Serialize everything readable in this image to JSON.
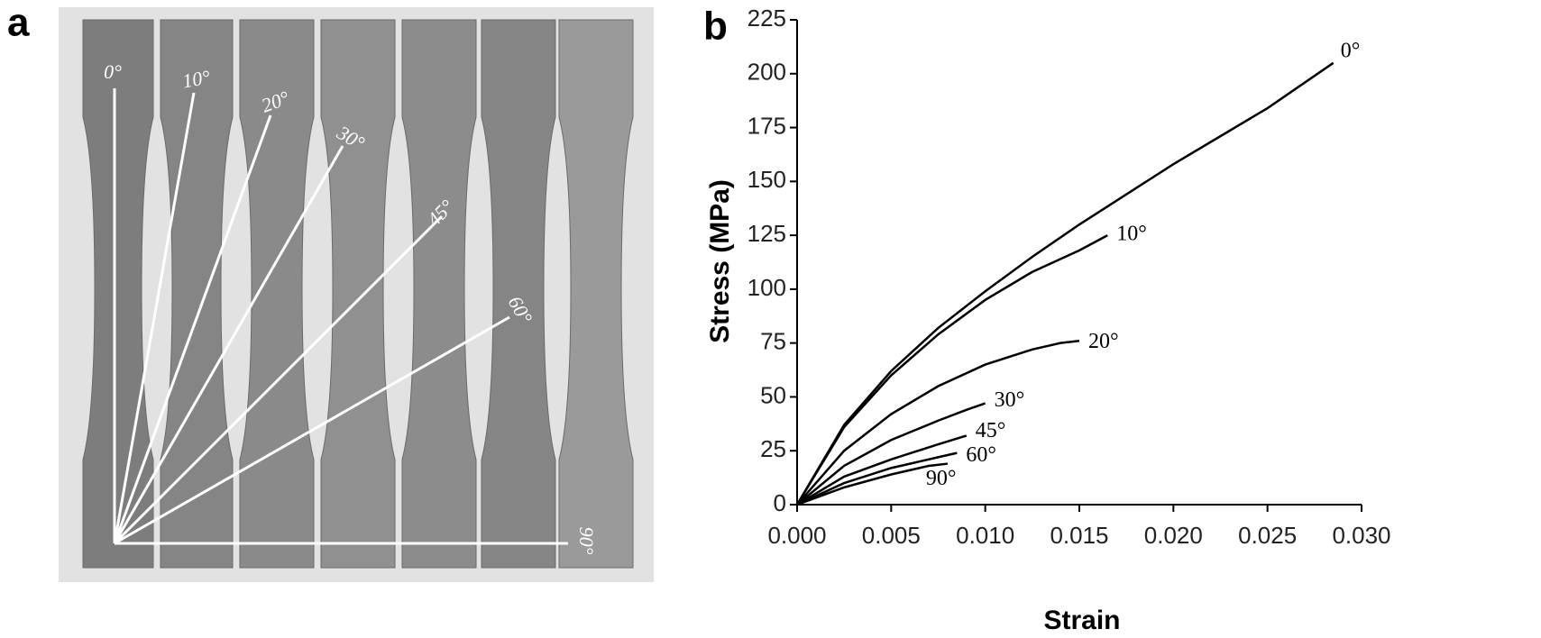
{
  "panel_labels": [
    "a",
    "b"
  ],
  "photo": {
    "angle_labels": [
      "0°",
      "10°",
      "20°",
      "30°",
      "45°",
      "60°",
      "90°"
    ]
  },
  "chart_data": {
    "type": "line",
    "xlabel": "Strain",
    "ylabel": "Stress (MPa)",
    "xlim": [
      0,
      0.03
    ],
    "ylim": [
      0,
      225
    ],
    "xticks": [
      {
        "value": 0,
        "label": "0.000"
      },
      {
        "value": 0.005,
        "label": "0.005"
      },
      {
        "value": 0.01,
        "label": "0.010"
      },
      {
        "value": 0.015,
        "label": "0.015"
      },
      {
        "value": 0.02,
        "label": "0.020"
      },
      {
        "value": 0.025,
        "label": "0.025"
      },
      {
        "value": 0.03,
        "label": "0.030"
      }
    ],
    "yticks": [
      0,
      25,
      50,
      75,
      100,
      125,
      150,
      175,
      200,
      225
    ],
    "series": [
      {
        "name": "0°",
        "color": "#000000",
        "x": [
          0,
          0.0025,
          0.005,
          0.0075,
          0.01,
          0.0125,
          0.015,
          0.0175,
          0.02,
          0.0225,
          0.025,
          0.0285
        ],
        "values": [
          0,
          37,
          62,
          82,
          99,
          115,
          130,
          144,
          158,
          171,
          184,
          205
        ]
      },
      {
        "name": "10°",
        "color": "#000000",
        "x": [
          0,
          0.0025,
          0.005,
          0.0075,
          0.01,
          0.0125,
          0.015,
          0.0165
        ],
        "values": [
          0,
          36,
          60,
          79,
          95,
          108,
          118,
          125
        ]
      },
      {
        "name": "20°",
        "color": "#000000",
        "x": [
          0,
          0.0025,
          0.005,
          0.0075,
          0.01,
          0.0125,
          0.014,
          0.015
        ],
        "values": [
          0,
          25,
          42,
          55,
          65,
          72,
          75,
          76
        ]
      },
      {
        "name": "30°",
        "color": "#000000",
        "x": [
          0,
          0.0025,
          0.005,
          0.0075,
          0.009,
          0.01
        ],
        "values": [
          0,
          18,
          30,
          39,
          44,
          47
        ]
      },
      {
        "name": "45°",
        "color": "#000000",
        "x": [
          0,
          0.0025,
          0.005,
          0.0075,
          0.009
        ],
        "values": [
          0,
          13,
          21,
          28,
          32
        ]
      },
      {
        "name": "60°",
        "color": "#000000",
        "x": [
          0,
          0.0025,
          0.005,
          0.0075,
          0.0085
        ],
        "values": [
          0,
          10,
          17,
          22,
          24
        ]
      },
      {
        "name": "90°",
        "color": "#000000",
        "x": [
          0,
          0.0025,
          0.005,
          0.007,
          0.008
        ],
        "values": [
          0,
          8,
          14,
          18,
          19
        ]
      }
    ]
  }
}
